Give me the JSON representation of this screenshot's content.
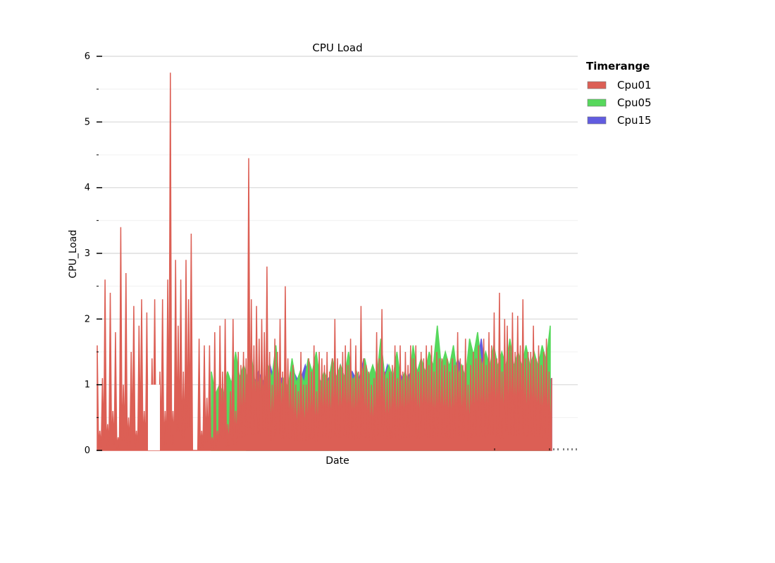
{
  "chart_data": {
    "type": "area",
    "title": "CPU Load",
    "xlabel": "Date",
    "ylabel": "CPU_Load",
    "ylim": [
      0,
      6
    ],
    "yticks": [
      "0",
      "1",
      "2",
      "3",
      "4",
      "5",
      "6"
    ],
    "grid": true,
    "legend": {
      "title": "Timerange",
      "placement": "right-top",
      "entries": [
        "Cpu01",
        "Cpu05",
        "Cpu15"
      ]
    },
    "colors": {
      "Cpu01": "#dc5f55",
      "Cpu05": "#57d85c",
      "Cpu15": "#615ce0"
    },
    "series": [
      {
        "name": "Cpu01",
        "values": [
          1.6,
          0.3,
          1.1,
          2.6,
          0.4,
          2.4,
          0.6,
          1.8,
          0.2,
          3.4,
          1.0,
          2.7,
          0.5,
          1.5,
          2.2,
          0.3,
          1.9,
          2.3,
          0.6,
          2.1,
          0.2,
          1.4,
          2.3,
          0.4,
          1.2,
          2.3,
          0.6,
          2.6,
          5.75,
          0.6,
          2.9,
          1.9,
          2.6,
          1.2,
          2.9,
          2.3,
          3.3,
          0.0,
          0.0,
          1.7,
          0.3,
          1.6,
          0.8,
          1.6,
          0.2,
          1.8,
          0.3,
          1.9,
          1.2,
          2.0,
          0.4,
          0.9,
          2.0,
          0.6,
          1.5,
          1.3,
          1.5,
          1.4,
          4.45,
          2.3,
          1.6,
          2.2,
          1.7,
          2.0,
          1.8,
          2.8,
          1.5,
          1.0,
          1.7,
          1.5,
          2.0,
          1.2,
          2.5,
          1.4,
          1.2,
          1.3,
          1.0,
          0.9,
          1.5,
          1.0,
          1.0,
          1.4,
          1.2,
          1.6,
          0.9,
          1.5,
          1.4,
          1.3,
          1.5,
          1.2,
          1.4,
          2.0,
          1.4,
          1.3,
          1.5,
          1.6,
          1.3,
          1.7,
          1.1,
          1.6,
          1.2,
          2.2,
          1.4,
          1.3,
          1.2,
          1.0,
          1.1,
          1.8,
          1.4,
          2.15,
          1.2,
          1.1,
          1.2,
          1.3,
          1.6,
          1.1,
          1.6,
          1.2,
          1.5,
          1.3,
          1.6,
          1.4,
          1.6,
          1.2,
          1.5,
          1.4,
          1.6,
          1.3,
          1.6,
          1.2,
          1.5,
          1.4,
          1.4,
          1.3,
          1.4,
          1.2,
          1.4,
          1.3,
          1.8,
          1.4,
          1.3,
          1.7,
          1.0,
          1.3,
          1.5,
          1.4,
          1.6,
          1.4,
          1.7,
          1.3,
          1.8,
          1.6,
          2.1,
          1.4,
          2.4,
          1.2,
          2.0,
          1.9,
          1.6,
          2.1,
          1.5,
          2.05,
          1.6,
          2.3,
          1.4,
          1.5,
          1.5,
          1.9,
          1.4,
          1.6,
          1.3,
          1.5,
          1.7,
          1.2,
          1.1
        ],
        "approximate": true
      },
      {
        "name": "Cpu05",
        "values": [
          1.2,
          1.0,
          1.2,
          1.5,
          1.3,
          1.4,
          1.1,
          1.3,
          1.6,
          1.1,
          1.4,
          1.2,
          1.4,
          1.5,
          1.2,
          1.4,
          1.3,
          1.5,
          1.2,
          1.4,
          1.3,
          1.7,
          1.3,
          1.5,
          1.2,
          1.6,
          1.4,
          1.5,
          1.9,
          1.5,
          1.6,
          1.3,
          1.7,
          1.8,
          1.5,
          1.6,
          1.5,
          1.7,
          1.5,
          1.6,
          1.5,
          1.6,
          1.9
        ],
        "approximate": true
      },
      {
        "name": "Cpu15",
        "values": [
          1.1,
          1.2,
          1.3,
          1.1,
          1.2,
          1.3,
          1.2,
          1.1,
          1.3,
          1.2,
          1.4,
          1.1,
          1.3,
          1.2,
          1.2,
          1.1,
          1.3,
          1.2,
          1.4,
          1.3,
          1.7,
          1.1,
          1.3,
          1.4,
          1.2,
          1.3,
          1.1
        ],
        "approximate": true
      }
    ]
  }
}
